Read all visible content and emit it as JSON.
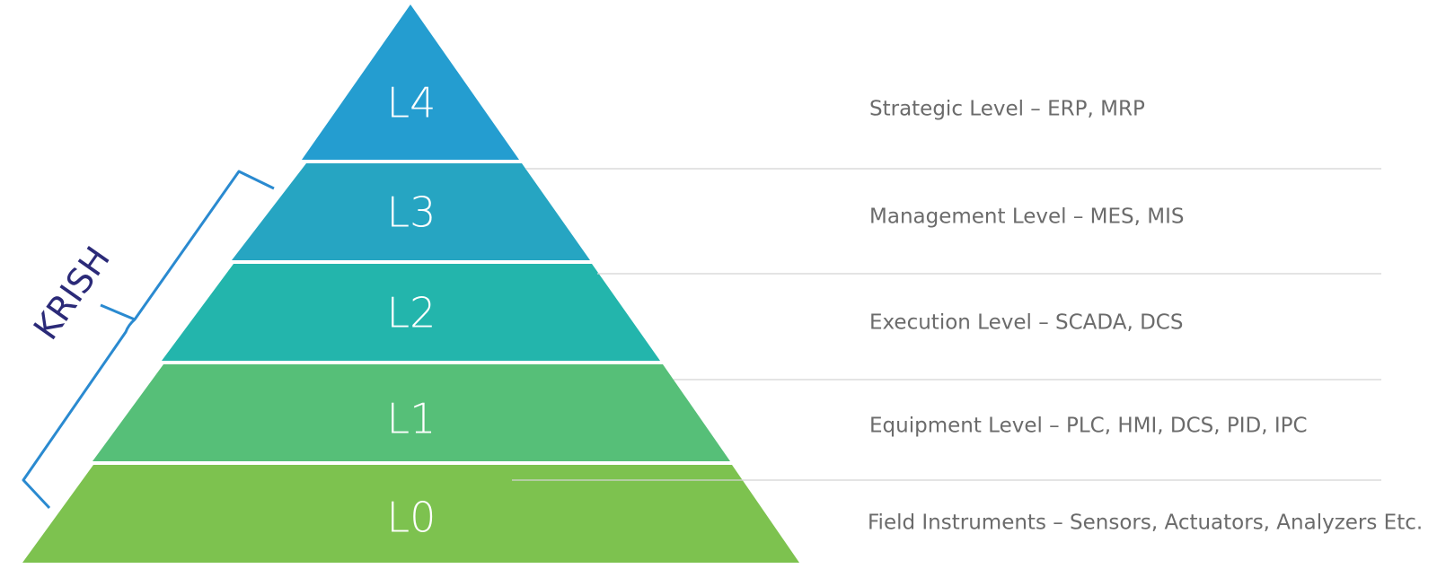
{
  "levels": [
    {
      "label": "L4",
      "description": "Strategic Level – ERP, MRP"
    },
    {
      "label": "L3",
      "description": "Management Level – MES, MIS"
    },
    {
      "label": "L2",
      "description": "Execution Level – SCADA, DCS"
    },
    {
      "label": "L1",
      "description": "Equipment Level – PLC, HMI, DCS, PID, IPC"
    },
    {
      "label": "L0",
      "description": "Field Instruments – Sensors, Actuators, Analyzers Etc."
    }
  ],
  "bracket_label": "KRISH"
}
